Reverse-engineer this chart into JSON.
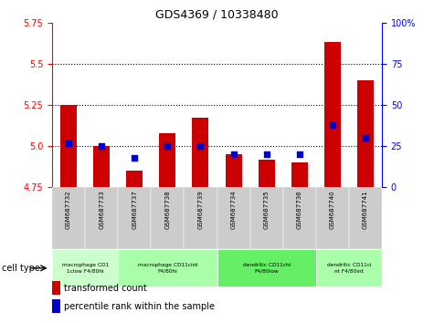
{
  "title": "GDS4369 / 10338480",
  "samples": [
    "GSM687732",
    "GSM687733",
    "GSM687737",
    "GSM687738",
    "GSM687739",
    "GSM687734",
    "GSM687735",
    "GSM687736",
    "GSM687740",
    "GSM687741"
  ],
  "transformed_count": [
    5.25,
    5.0,
    4.85,
    5.08,
    5.17,
    4.95,
    4.92,
    4.9,
    5.63,
    5.4
  ],
  "percentile_rank": [
    27,
    25,
    18,
    25,
    25,
    20,
    20,
    20,
    38,
    30
  ],
  "ylim_left": [
    4.75,
    5.75
  ],
  "ylim_right": [
    0,
    100
  ],
  "yticks_left": [
    4.75,
    5.0,
    5.25,
    5.5,
    5.75
  ],
  "yticks_right": [
    0,
    25,
    50,
    75,
    100
  ],
  "hlines": [
    5.0,
    5.25,
    5.5
  ],
  "bar_color": "#cc0000",
  "dot_color": "#0000cc",
  "cell_types": [
    {
      "label": "macrophage CD1\n1clow F4/80hi",
      "start": 0,
      "end": 2,
      "color": "#ccffcc"
    },
    {
      "label": "macrophage CD11cint\nF4/80hi",
      "start": 2,
      "end": 5,
      "color": "#aaffaa"
    },
    {
      "label": "dendritic CD11chi\nF4/80low",
      "start": 5,
      "end": 8,
      "color": "#66ee66"
    },
    {
      "label": "dendritic CD11ci\nnt F4/80int",
      "start": 8,
      "end": 10,
      "color": "#aaffaa"
    }
  ],
  "legend_label1": "transformed count",
  "legend_label2": "percentile rank within the sample",
  "xlabel_cell_type": "cell type",
  "bg_color": "#ffffff",
  "plot_bg_color": "#ffffff",
  "bar_width": 0.5,
  "base_value": 4.75,
  "sample_box_color": "#cccccc",
  "grid_color": "#000000"
}
